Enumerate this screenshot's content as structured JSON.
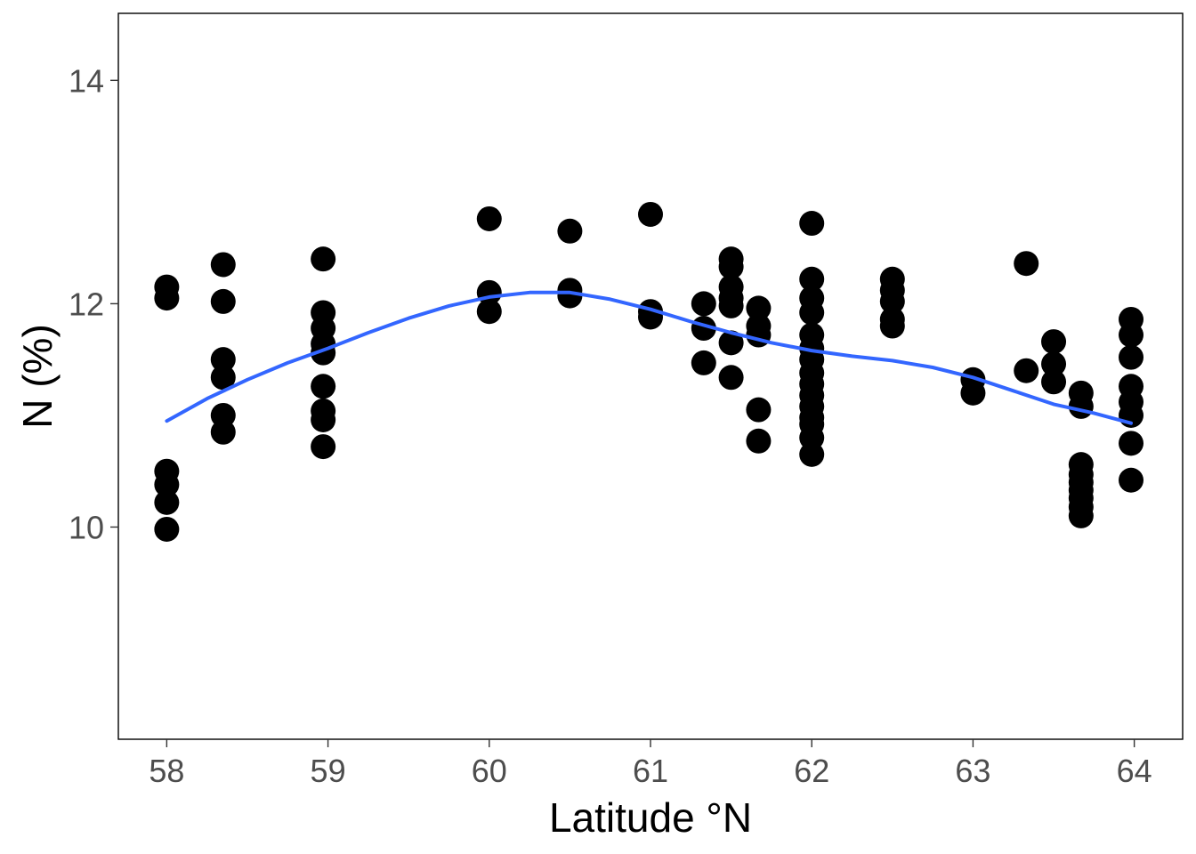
{
  "chart_data": {
    "type": "scatter",
    "title": "",
    "xlabel": "Latitude °N",
    "ylabel": "N (%)",
    "xlim": [
      57.7,
      64.3
    ],
    "ylim": [
      8.1,
      14.6
    ],
    "x_ticks": [
      58,
      59,
      60,
      61,
      62,
      63,
      64
    ],
    "y_ticks": [
      10,
      12,
      14
    ],
    "grid": false,
    "legend": "none",
    "point_color": "#000000",
    "line_color": "#3366ff",
    "points": [
      {
        "x": 58.0,
        "y": 12.15
      },
      {
        "x": 58.0,
        "y": 12.05
      },
      {
        "x": 58.0,
        "y": 10.5
      },
      {
        "x": 58.0,
        "y": 10.38
      },
      {
        "x": 58.0,
        "y": 10.22
      },
      {
        "x": 58.0,
        "y": 9.98
      },
      {
        "x": 58.35,
        "y": 12.35
      },
      {
        "x": 58.35,
        "y": 12.02
      },
      {
        "x": 58.35,
        "y": 11.5
      },
      {
        "x": 58.35,
        "y": 11.34
      },
      {
        "x": 58.35,
        "y": 11.0
      },
      {
        "x": 58.35,
        "y": 10.85
      },
      {
        "x": 58.97,
        "y": 12.4
      },
      {
        "x": 58.97,
        "y": 11.92
      },
      {
        "x": 58.97,
        "y": 11.78
      },
      {
        "x": 58.97,
        "y": 11.64
      },
      {
        "x": 58.97,
        "y": 11.56
      },
      {
        "x": 58.97,
        "y": 11.26
      },
      {
        "x": 58.97,
        "y": 11.04
      },
      {
        "x": 58.97,
        "y": 10.96
      },
      {
        "x": 58.97,
        "y": 10.72
      },
      {
        "x": 60.0,
        "y": 12.76
      },
      {
        "x": 60.0,
        "y": 12.1
      },
      {
        "x": 60.0,
        "y": 11.93
      },
      {
        "x": 60.5,
        "y": 12.65
      },
      {
        "x": 60.5,
        "y": 12.12
      },
      {
        "x": 60.5,
        "y": 12.07
      },
      {
        "x": 61.0,
        "y": 12.8
      },
      {
        "x": 61.0,
        "y": 11.93
      },
      {
        "x": 61.0,
        "y": 11.88
      },
      {
        "x": 61.33,
        "y": 12.0
      },
      {
        "x": 61.33,
        "y": 11.78
      },
      {
        "x": 61.33,
        "y": 11.47
      },
      {
        "x": 61.5,
        "y": 12.4
      },
      {
        "x": 61.5,
        "y": 12.33
      },
      {
        "x": 61.5,
        "y": 12.15
      },
      {
        "x": 61.5,
        "y": 12.05
      },
      {
        "x": 61.5,
        "y": 11.98
      },
      {
        "x": 61.5,
        "y": 11.65
      },
      {
        "x": 61.5,
        "y": 11.34
      },
      {
        "x": 61.67,
        "y": 11.96
      },
      {
        "x": 61.67,
        "y": 11.8
      },
      {
        "x": 61.67,
        "y": 11.72
      },
      {
        "x": 61.67,
        "y": 11.05
      },
      {
        "x": 61.67,
        "y": 10.77
      },
      {
        "x": 62.0,
        "y": 12.72
      },
      {
        "x": 62.0,
        "y": 12.22
      },
      {
        "x": 62.0,
        "y": 12.05
      },
      {
        "x": 62.0,
        "y": 11.92
      },
      {
        "x": 62.0,
        "y": 11.72
      },
      {
        "x": 62.0,
        "y": 11.6
      },
      {
        "x": 62.0,
        "y": 11.5
      },
      {
        "x": 62.0,
        "y": 11.38
      },
      {
        "x": 62.0,
        "y": 11.28
      },
      {
        "x": 62.0,
        "y": 11.18
      },
      {
        "x": 62.0,
        "y": 11.08
      },
      {
        "x": 62.0,
        "y": 10.98
      },
      {
        "x": 62.0,
        "y": 10.92
      },
      {
        "x": 62.0,
        "y": 10.8
      },
      {
        "x": 62.0,
        "y": 10.65
      },
      {
        "x": 62.5,
        "y": 12.22
      },
      {
        "x": 62.5,
        "y": 12.12
      },
      {
        "x": 62.5,
        "y": 12.02
      },
      {
        "x": 62.5,
        "y": 11.86
      },
      {
        "x": 62.5,
        "y": 11.8
      },
      {
        "x": 63.0,
        "y": 11.32
      },
      {
        "x": 63.0,
        "y": 11.2
      },
      {
        "x": 63.33,
        "y": 12.36
      },
      {
        "x": 63.33,
        "y": 11.4
      },
      {
        "x": 63.5,
        "y": 11.66
      },
      {
        "x": 63.5,
        "y": 11.46
      },
      {
        "x": 63.5,
        "y": 11.3
      },
      {
        "x": 63.67,
        "y": 11.2
      },
      {
        "x": 63.67,
        "y": 11.08
      },
      {
        "x": 63.67,
        "y": 10.56
      },
      {
        "x": 63.67,
        "y": 10.47
      },
      {
        "x": 63.67,
        "y": 10.4
      },
      {
        "x": 63.67,
        "y": 10.33
      },
      {
        "x": 63.67,
        "y": 10.26
      },
      {
        "x": 63.67,
        "y": 10.18
      },
      {
        "x": 63.67,
        "y": 10.1
      },
      {
        "x": 63.98,
        "y": 11.86
      },
      {
        "x": 63.98,
        "y": 11.72
      },
      {
        "x": 63.98,
        "y": 11.52
      },
      {
        "x": 63.98,
        "y": 11.26
      },
      {
        "x": 63.98,
        "y": 11.12
      },
      {
        "x": 63.98,
        "y": 11.0
      },
      {
        "x": 63.98,
        "y": 10.75
      },
      {
        "x": 63.98,
        "y": 10.42
      }
    ],
    "smooth": {
      "x": [
        58.0,
        58.25,
        58.5,
        58.75,
        59.0,
        59.25,
        59.5,
        59.75,
        60.0,
        60.25,
        60.5,
        60.75,
        61.0,
        61.25,
        61.5,
        61.75,
        62.0,
        62.25,
        62.5,
        62.75,
        63.0,
        63.25,
        63.5,
        63.75,
        63.98
      ],
      "y": [
        10.95,
        11.15,
        11.32,
        11.47,
        11.6,
        11.74,
        11.87,
        11.98,
        12.06,
        12.1,
        12.1,
        12.04,
        11.95,
        11.84,
        11.74,
        11.65,
        11.58,
        11.53,
        11.49,
        11.43,
        11.34,
        11.22,
        11.1,
        11.02,
        10.93
      ]
    }
  }
}
